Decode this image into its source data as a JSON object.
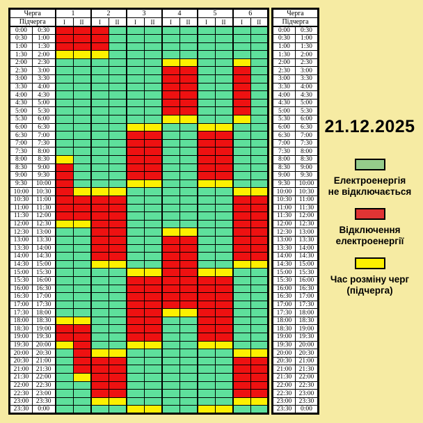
{
  "table": {
    "queue_header": "Черга",
    "subqueue_header": "Підчерга",
    "queues": [
      "1",
      "2",
      "3",
      "4",
      "5",
      "6"
    ],
    "subqueues": [
      "I",
      "II"
    ]
  },
  "chart_data": {
    "type": "heatmap",
    "title": "21.12.2025",
    "columns": [
      "1-I",
      "1-II",
      "2-I",
      "2-II",
      "3-I",
      "3-II",
      "4-I",
      "4-II",
      "5-I",
      "5-II",
      "6-I",
      "6-II"
    ],
    "time_rows": [
      [
        "0:00",
        "0:30"
      ],
      [
        "0:30",
        "1:00"
      ],
      [
        "1:00",
        "1:30"
      ],
      [
        "1:30",
        "2:00"
      ],
      [
        "2:00",
        "2:30"
      ],
      [
        "2:30",
        "3:00"
      ],
      [
        "3:00",
        "3:30"
      ],
      [
        "3:30",
        "4:00"
      ],
      [
        "4:00",
        "4:30"
      ],
      [
        "4:30",
        "5:00"
      ],
      [
        "5:00",
        "5:30"
      ],
      [
        "5:30",
        "6:00"
      ],
      [
        "6:00",
        "6:30"
      ],
      [
        "6:30",
        "7:00"
      ],
      [
        "7:00",
        "7:30"
      ],
      [
        "7:30",
        "8:00"
      ],
      [
        "8:00",
        "8:30"
      ],
      [
        "8:30",
        "9:00"
      ],
      [
        "9:00",
        "9:30"
      ],
      [
        "9:30",
        "10:00"
      ],
      [
        "10:00",
        "10:30"
      ],
      [
        "10:30",
        "11:00"
      ],
      [
        "11:00",
        "11:30"
      ],
      [
        "11:30",
        "12:00"
      ],
      [
        "12:00",
        "12:30"
      ],
      [
        "12:30",
        "13:00"
      ],
      [
        "13:00",
        "13:30"
      ],
      [
        "13:30",
        "14:00"
      ],
      [
        "14:00",
        "14:30"
      ],
      [
        "14:30",
        "15:00"
      ],
      [
        "15:00",
        "15:30"
      ],
      [
        "15:30",
        "16:00"
      ],
      [
        "16:00",
        "16:30"
      ],
      [
        "16:30",
        "17:00"
      ],
      [
        "17:00",
        "17:30"
      ],
      [
        "17:30",
        "18:00"
      ],
      [
        "18:00",
        "18:30"
      ],
      [
        "18:30",
        "19:00"
      ],
      [
        "19:00",
        "19:30"
      ],
      [
        "19:30",
        "20:00"
      ],
      [
        "20:00",
        "20:30"
      ],
      [
        "20:30",
        "21:00"
      ],
      [
        "21:00",
        "21:30"
      ],
      [
        "21:30",
        "22:00"
      ],
      [
        "22:00",
        "22:30"
      ],
      [
        "22:30",
        "23:00"
      ],
      [
        "23:00",
        "23:30"
      ],
      [
        "23:30",
        "0:00"
      ]
    ],
    "values": [
      "RRRGGGGGGGGG",
      "RRRGGGGGGGGG",
      "RRRGGGGGGGGG",
      "YYYGGGGGGGGG",
      "GGGGGGYYGGYG",
      "GGGGGGRRGGRG",
      "GGGGGGRRGGRG",
      "GGGGGGRRGGRG",
      "GGGGGGRRGGRG",
      "GGGGGGRRGGRG",
      "GGGGGGRRGGRG",
      "GGGGGGYYGGYG",
      "GGGGYYGGYYGG",
      "GGGGRRGGRRGG",
      "GGGGRRGGRRGG",
      "GGGGRRGGRRGG",
      "YGGGRRGGRRGG",
      "RGGGRRGGRRGG",
      "RGGGRRGGRRGG",
      "RGGGYYGGYYGG",
      "RYYYGGGGGGYY",
      "RRRRGGGGGGRR",
      "RRRRGGGGGGRR",
      "RRRRGGGGGGRR",
      "YYRRGGGGGGRR",
      "GGRRGGYYGGRR",
      "GGRRGGRRGGRR",
      "GGRRGGRRGGRR",
      "GGRRGGRRGGRR",
      "GGYYGGRRGGYY",
      "GGGGYYRRYYGG",
      "GGGGRRRRRRGG",
      "GGGGRRRRRRGG",
      "GGGGRRRRRRGG",
      "GGGGRRRRRRGG",
      "GGGGRRYYRRGG",
      "YYGGRRGGRRGG",
      "RRGGRRGGRRGG",
      "RRGGRRGGRRGG",
      "YRGGYYGGYYGG",
      "GRYYGGGGGGYY",
      "GRRRGGGGGGRR",
      "GRRRGGGGGGRR",
      "GYRRGGGGGGRR",
      "GGRRGGGGGGRR",
      "GGRRGGGGGGRR",
      "GGYYGGGGGGYY",
      "GGGGYYGGYYGG"
    ],
    "value_legend": {
      "G": "Електроенергія не відключається",
      "R": "Відключення електроенергії",
      "Y": "Час розміну черг (підчерга)"
    }
  },
  "side_panel": {
    "date": "21.12.2025",
    "legend": [
      {
        "swatch": "green",
        "lines": [
          "Електроенергія",
          "не відключається"
        ]
      },
      {
        "swatch": "red",
        "lines": [
          "Відключення",
          "електроенергії"
        ]
      },
      {
        "swatch": "yellow",
        "lines": [
          "Час розміну черг",
          "(підчерга)"
        ]
      }
    ]
  },
  "colors": {
    "background": "#f6eba3",
    "cell_green": "#5ee09c",
    "cell_red": "#ee1111",
    "cell_yellow": "#fdf000",
    "legend_green": "#95cc8b",
    "legend_red": "#e03434",
    "legend_yellow": "#fdf000",
    "grid_line": "#000000",
    "header_bg": "#ffffff"
  }
}
